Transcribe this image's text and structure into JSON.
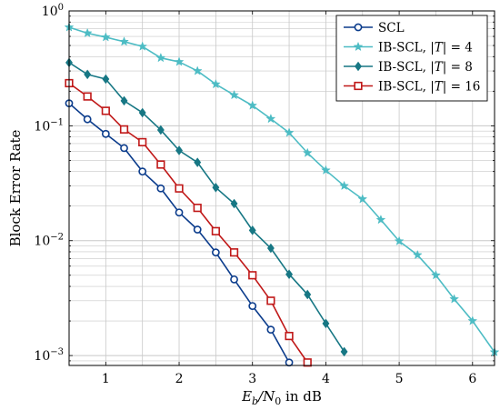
{
  "chart_data": {
    "type": "line",
    "xlabel": "E_b/N_0 in dB",
    "ylabel": "Block Error Rate",
    "xlim": [
      0.5,
      6.3
    ],
    "ylim": [
      0.00082,
      1.0
    ],
    "y_scale": "log",
    "grid": true,
    "legend_position": "top-right",
    "x_ticks": [
      1,
      2,
      3,
      4,
      5,
      6
    ],
    "x_tick_labels": [
      "1",
      "2",
      "3",
      "4",
      "5",
      "6"
    ],
    "y_ticks": [
      1,
      0.1,
      0.01,
      0.001
    ],
    "y_tick_labels": [
      {
        "base": "10",
        "exp": "0"
      },
      {
        "base": "10",
        "exp": "−1"
      },
      {
        "base": "10",
        "exp": "−2"
      },
      {
        "base": "10",
        "exp": "−3"
      }
    ],
    "series": [
      {
        "name": "SCL",
        "color": "#0b3c8c",
        "marker": "circle",
        "x": [
          0.5,
          0.75,
          1.0,
          1.25,
          1.5,
          1.75,
          2.0,
          2.25,
          2.5,
          2.75,
          3.0,
          3.25,
          3.5
        ],
        "y": [
          0.157,
          0.114,
          0.085,
          0.064,
          0.04,
          0.0285,
          0.0176,
          0.0125,
          0.0079,
          0.0046,
          0.0027,
          0.00168,
          0.00087
        ]
      },
      {
        "name": "IB-SCL, |T| = 4",
        "color": "#4dbcc4",
        "marker": "star",
        "x": [
          0.5,
          0.75,
          1.0,
          1.25,
          1.5,
          1.75,
          2.0,
          2.25,
          2.5,
          2.75,
          3.0,
          3.25,
          3.5,
          3.75,
          4.0,
          4.25,
          4.5,
          4.75,
          5.0,
          5.25,
          5.5,
          5.75,
          6.0,
          6.3
        ],
        "y": [
          0.72,
          0.64,
          0.59,
          0.54,
          0.49,
          0.39,
          0.36,
          0.3,
          0.23,
          0.185,
          0.15,
          0.115,
          0.087,
          0.058,
          0.041,
          0.03,
          0.023,
          0.0152,
          0.0099,
          0.0075,
          0.005,
          0.0031,
          0.002,
          0.00107
        ]
      },
      {
        "name": "IB-SCL, |T| = 8",
        "color": "#177784",
        "marker": "diamond",
        "x": [
          0.5,
          0.75,
          1.0,
          1.25,
          1.5,
          1.75,
          2.0,
          2.25,
          2.5,
          2.75,
          3.0,
          3.25,
          3.5,
          3.75,
          4.0,
          4.25
        ],
        "y": [
          0.355,
          0.28,
          0.255,
          0.165,
          0.13,
          0.092,
          0.061,
          0.048,
          0.029,
          0.021,
          0.0123,
          0.0086,
          0.0051,
          0.0034,
          0.0019,
          0.00108
        ]
      },
      {
        "name": "IB-SCL, |T| = 16",
        "color": "#c01818",
        "marker": "square",
        "x": [
          0.5,
          0.75,
          1.0,
          1.25,
          1.5,
          1.75,
          2.0,
          2.25,
          2.5,
          2.75,
          3.0,
          3.25,
          3.5,
          3.75
        ],
        "y": [
          0.235,
          0.18,
          0.135,
          0.093,
          0.072,
          0.046,
          0.0285,
          0.0193,
          0.0121,
          0.0079,
          0.005,
          0.003,
          0.00148,
          0.00087
        ]
      }
    ]
  }
}
